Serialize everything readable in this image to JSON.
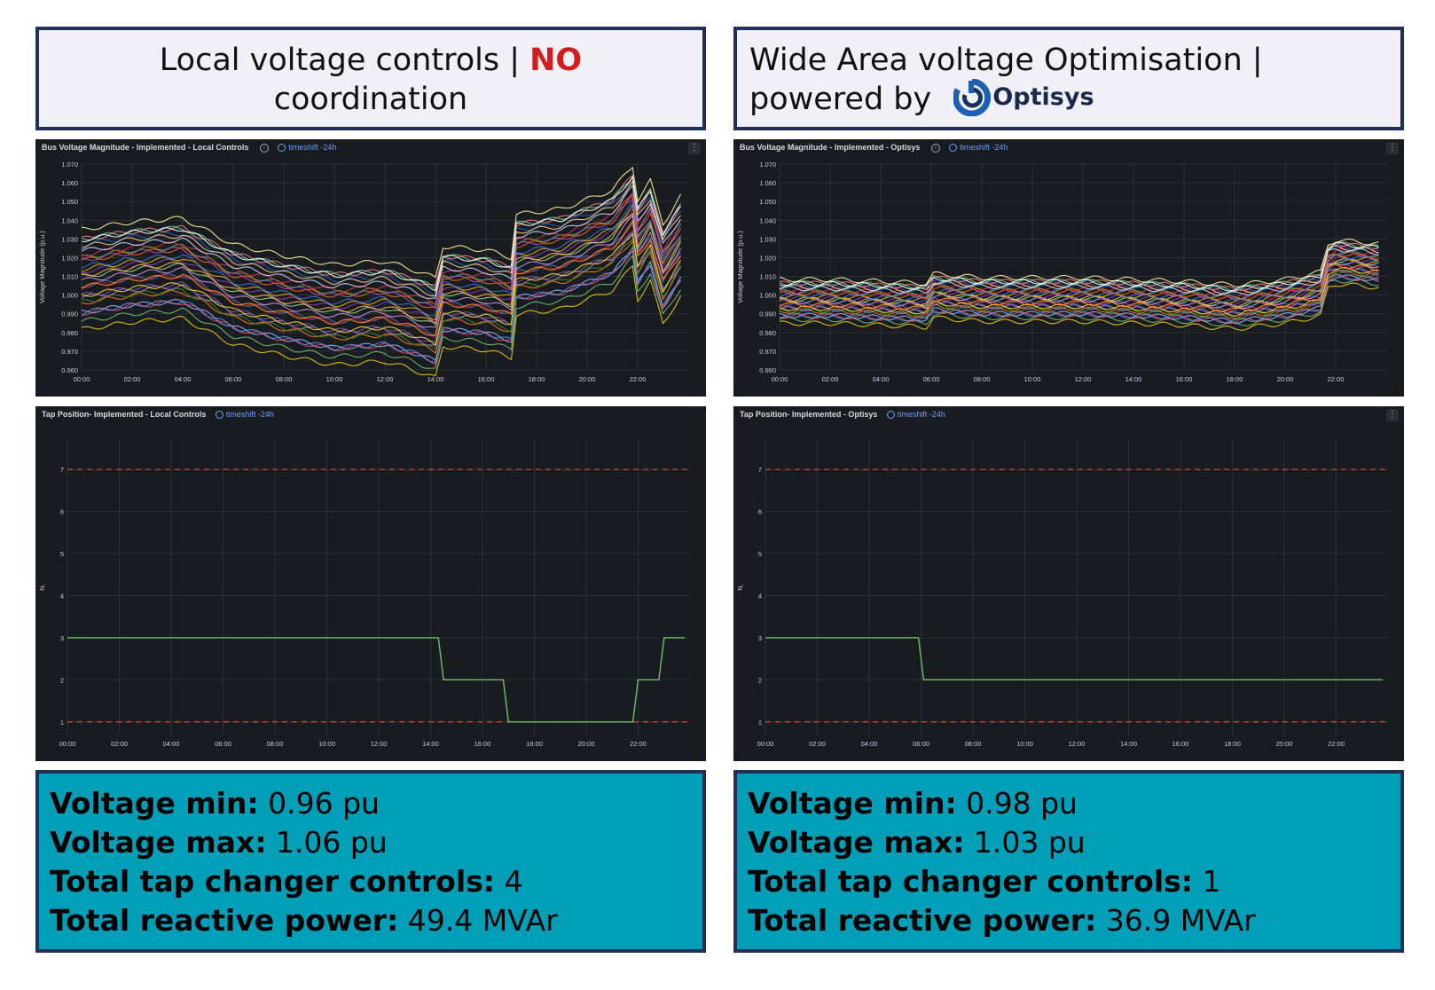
{
  "left": {
    "header": {
      "text": "Local voltage controls | ",
      "highlight": "NO",
      "line2": "coordination"
    },
    "voltage_panel": {
      "title": "Bus Voltage Magnitude - Implemented - Local Controls",
      "timeshift": "timeshift -24h",
      "ylabel": "Voltage Magnitude (p.u.)"
    },
    "tap_panel": {
      "title": "Tap Position- Implemented - Local Controls",
      "timeshift": "timeshift -24h",
      "ylabel": "N."
    },
    "stats": [
      {
        "label": "Voltage min:",
        "value": " 0.96 pu"
      },
      {
        "label": "Voltage max:",
        "value": " 1.06 pu"
      },
      {
        "label": "Total tap changer controls:",
        "value": " 4"
      },
      {
        "label": "Total reactive power:",
        "value": " 49.4 MVAr"
      }
    ]
  },
  "right": {
    "header": {
      "text": "Wide Area voltage Optimisation |",
      "line2": "powered by",
      "brand": "Optisys"
    },
    "voltage_panel": {
      "title": "Bus Voltage Magnitude - Implemented - Optisys",
      "timeshift": "timeshift -24h",
      "ylabel": "Voltage Magnitude (p.u.)"
    },
    "tap_panel": {
      "title": "Tap Position- Implemented - Optisys",
      "timeshift": "timeshift -24h",
      "ylabel": "N."
    },
    "stats": [
      {
        "label": "Voltage min:",
        "value": " 0.98 pu"
      },
      {
        "label": "Voltage max:",
        "value": " 1.03 pu"
      },
      {
        "label": "Total tap changer controls:",
        "value": " 1"
      },
      {
        "label": "Total reactive power:",
        "value": " 36.9 MVAr"
      }
    ]
  },
  "colors": {
    "header_border": "#1f3158",
    "header_bg": "#f1f0f6",
    "no_red": "#d21d1d",
    "stats_bg": "#019eb8",
    "panel_bg": "#181b1f",
    "tap_line": "#73bf69",
    "threshold": "#d44a3a",
    "timeshift": "#6e9fff"
  },
  "chart_data": [
    {
      "type": "line",
      "title": "Bus Voltage Magnitude - Implemented - Local Controls",
      "ylabel": "Voltage Magnitude (p.u.)",
      "ylim": [
        0.96,
        1.07
      ],
      "yticks": [
        "0.960",
        "0.970",
        "0.980",
        "0.990",
        "1.000",
        "1.010",
        "1.020",
        "1.030",
        "1.040",
        "1.050",
        "1.060",
        "1.070"
      ],
      "xticks": [
        "00:00",
        "02:00",
        "04:00",
        "06:00",
        "08:00",
        "10:00",
        "12:00",
        "14:00",
        "16:00",
        "18:00",
        "20:00",
        "22:00"
      ],
      "x_hours": [
        0,
        2,
        4,
        6,
        8,
        10,
        12,
        13,
        14,
        14.3,
        16,
        17,
        17.2,
        19,
        21,
        21.8,
        22,
        22.5,
        23,
        23.8
      ],
      "base_profile": [
        1.012,
        1.016,
        1.018,
        1.004,
        0.998,
        0.993,
        0.995,
        0.991,
        0.986,
        1.003,
        1.001,
        0.997,
        1.02,
        1.023,
        1.033,
        1.046,
        1.028,
        1.038,
        1.015,
        1.032
      ],
      "series_count": 30,
      "spread": [
        -0.026,
        0.022
      ],
      "grid": true
    },
    {
      "type": "line",
      "title": "Bus Voltage Magnitude - Implemented - Optisys",
      "ylabel": "Voltage Magnitude (p.u.)",
      "ylim": [
        0.96,
        1.07
      ],
      "yticks": [
        "0.960",
        "0.970",
        "0.980",
        "0.990",
        "1.000",
        "1.010",
        "1.020",
        "1.030",
        "1.040",
        "1.050",
        "1.060",
        "1.070"
      ],
      "xticks": [
        "00:00",
        "02:00",
        "04:00",
        "06:00",
        "08:00",
        "10:00",
        "12:00",
        "14:00",
        "16:00",
        "18:00",
        "20:00",
        "22:00"
      ],
      "x_hours": [
        0,
        2,
        4,
        5.8,
        6.1,
        8,
        10,
        12,
        14,
        16,
        18,
        20,
        21.4,
        21.7,
        22,
        23,
        23.8
      ],
      "base_profile": [
        0.999,
        0.999,
        0.998,
        0.997,
        1.002,
        1.0,
        1.0,
        1.0,
        0.999,
        0.998,
        0.996,
        0.999,
        1.003,
        1.018,
        1.02,
        1.019,
        1.018
      ],
      "series_count": 30,
      "spread": [
        -0.012,
        0.009
      ],
      "grid": true
    },
    {
      "type": "line",
      "title": "Tap Position- Implemented - Local Controls",
      "ylabel": "N.",
      "ylim": [
        0.7,
        7.7
      ],
      "yticks": [
        "1",
        "2",
        "3",
        "4",
        "5",
        "6",
        "7"
      ],
      "xticks": [
        "00:00",
        "02:00",
        "04:00",
        "06:00",
        "08:00",
        "10:00",
        "12:00",
        "14:00",
        "16:00",
        "18:00",
        "20:00",
        "22:00"
      ],
      "thresholds": [
        1,
        7
      ],
      "series": [
        {
          "x": [
            0,
            14.3,
            14.5,
            16.8,
            17.0,
            21.8,
            22.0,
            22.8,
            23.0,
            23.8
          ],
          "values": [
            3,
            3,
            2,
            2,
            1,
            1,
            2,
            2,
            3,
            3
          ]
        }
      ],
      "grid": true
    },
    {
      "type": "line",
      "title": "Tap Position- Implemented - Optisys",
      "ylabel": "N.",
      "ylim": [
        0.7,
        7.7
      ],
      "yticks": [
        "1",
        "2",
        "3",
        "4",
        "5",
        "6",
        "7"
      ],
      "xticks": [
        "00:00",
        "02:00",
        "04:00",
        "06:00",
        "08:00",
        "10:00",
        "12:00",
        "14:00",
        "16:00",
        "18:00",
        "20:00",
        "22:00"
      ],
      "thresholds": [
        1,
        7
      ],
      "series": [
        {
          "x": [
            0,
            5.9,
            6.1,
            23.8
          ],
          "values": [
            3,
            3,
            2,
            2
          ]
        }
      ],
      "grid": true
    }
  ]
}
